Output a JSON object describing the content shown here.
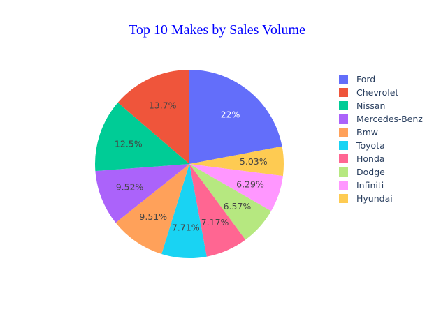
{
  "chart_data": {
    "type": "pie",
    "title": "Top 10 Makes by Sales Volume",
    "categories": [
      "Ford",
      "Chevrolet",
      "Nissan",
      "Mercedes-Benz",
      "Bmw",
      "Toyota",
      "Honda",
      "Dodge",
      "Infiniti",
      "Hyundai"
    ],
    "values": [
      22,
      13.7,
      12.5,
      9.52,
      9.51,
      7.71,
      7.17,
      6.57,
      6.29,
      5.03
    ],
    "labels": [
      "22%",
      "13.7%",
      "12.5%",
      "9.52%",
      "9.51%",
      "7.71%",
      "7.17%",
      "6.57%",
      "6.29%",
      "5.03%"
    ],
    "colors": [
      "#636efa",
      "#EF553B",
      "#00cc96",
      "#ab63fa",
      "#FFA15A",
      "#19d3f3",
      "#FF6692",
      "#B6E880",
      "#FF97FF",
      "#FECB52"
    ],
    "label_colors": [
      "#ffffff",
      "#444444",
      "#444444",
      "#444444",
      "#444444",
      "#444444",
      "#444444",
      "#444444",
      "#444444",
      "#444444"
    ],
    "clockwise_slice_order": [
      "Ford",
      "Hyundai",
      "Infiniti",
      "Dodge",
      "Honda",
      "Toyota",
      "Bmw",
      "Mercedes-Benz",
      "Nissan",
      "Chevrolet"
    ],
    "legend_position": "right"
  }
}
